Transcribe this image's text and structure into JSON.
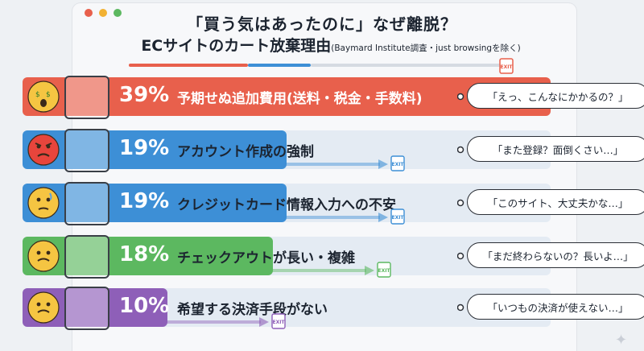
{
  "window": {
    "buttons": [
      "close",
      "minimize",
      "maximize"
    ]
  },
  "header": {
    "title_line1": "「買う気はあったのに」なぜ離脱？",
    "title_line2_main": "ECサイトのカート放棄理由",
    "title_line2_sub": "(Baymard Institute調査・just browsingを除く)",
    "exit_label": "EXIT"
  },
  "colors": {
    "row1": "#e8604c",
    "row2": "#3d8fd6",
    "row3": "#3d8fd6",
    "row4": "#5cb860",
    "row5": "#8e5fb8",
    "track": "#e4ebf3",
    "title_text": "#1c2430"
  },
  "chart_data": {
    "type": "bar",
    "title": "「買う気はあったのに」なぜ離脱？ ECサイトのカート放棄理由",
    "subtitle": "(Baymard Institute調査・just browsingを除く)",
    "unit": "%",
    "categories": [
      "予期せぬ追加費用(送料・税金・手数料)",
      "アカウント作成の強制",
      "クレジットカード情報入力への不安",
      "チェックアウトが長い・複雑",
      "希望する決済手段がない"
    ],
    "values": [
      39,
      19,
      19,
      18,
      10
    ],
    "value_labels": [
      "39%",
      "19%",
      "19%",
      "18%",
      "10%"
    ],
    "quotes": [
      "「えっ、こんなにかかるの？」",
      "「また登録？面倒くさい…」",
      "「このサイト、大丈夫かな…」",
      "「まだ終わらないの？長いよ…」",
      "「いつもの決済が使えない…」"
    ],
    "icons": [
      "shocked-face-shopping-cart-icon",
      "angry-face-sign-up-gate-icon",
      "worried-face-credit-card-lock-icon",
      "sad-face-maze-icon",
      "sad-face-payment-cards-icon"
    ],
    "exit_label": "EXIT",
    "xlim": [
      0,
      39
    ]
  }
}
